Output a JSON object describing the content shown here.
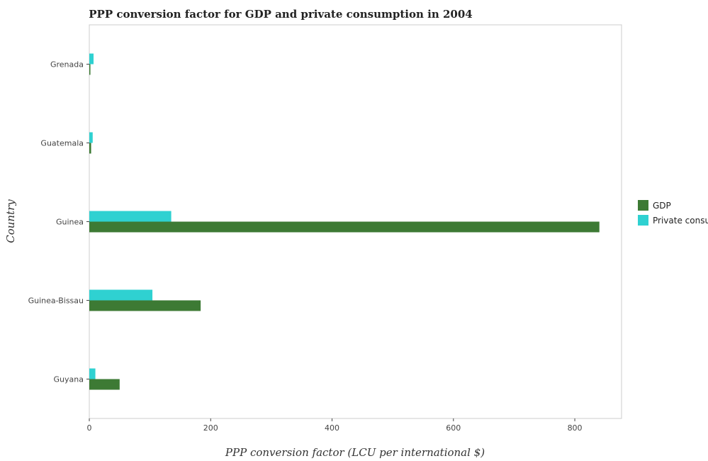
{
  "chart_data": {
    "type": "bar",
    "orientation": "horizontal",
    "title": "PPP conversion factor for GDP and private consumption in 2004",
    "xlabel": "PPP conversion factor (LCU per international $)",
    "ylabel": "Country",
    "categories": [
      "Grenada",
      "Guatemala",
      "Guinea",
      "Guinea-Bissau",
      "Guyana"
    ],
    "series": [
      {
        "name": "GDP",
        "color": "#3d7a34",
        "values": [
          1.8,
          3.0,
          840.5,
          183.5,
          50.0
        ]
      },
      {
        "name": " Private consumption",
        "color": "#2fd1d1",
        "values": [
          7.0,
          5.6,
          135.0,
          104.0,
          10.0
        ]
      }
    ],
    "xticks": [
      0,
      200,
      400,
      600,
      800
    ],
    "xlim": [
      0,
      877
    ],
    "legend": "right",
    "grid": false
  }
}
